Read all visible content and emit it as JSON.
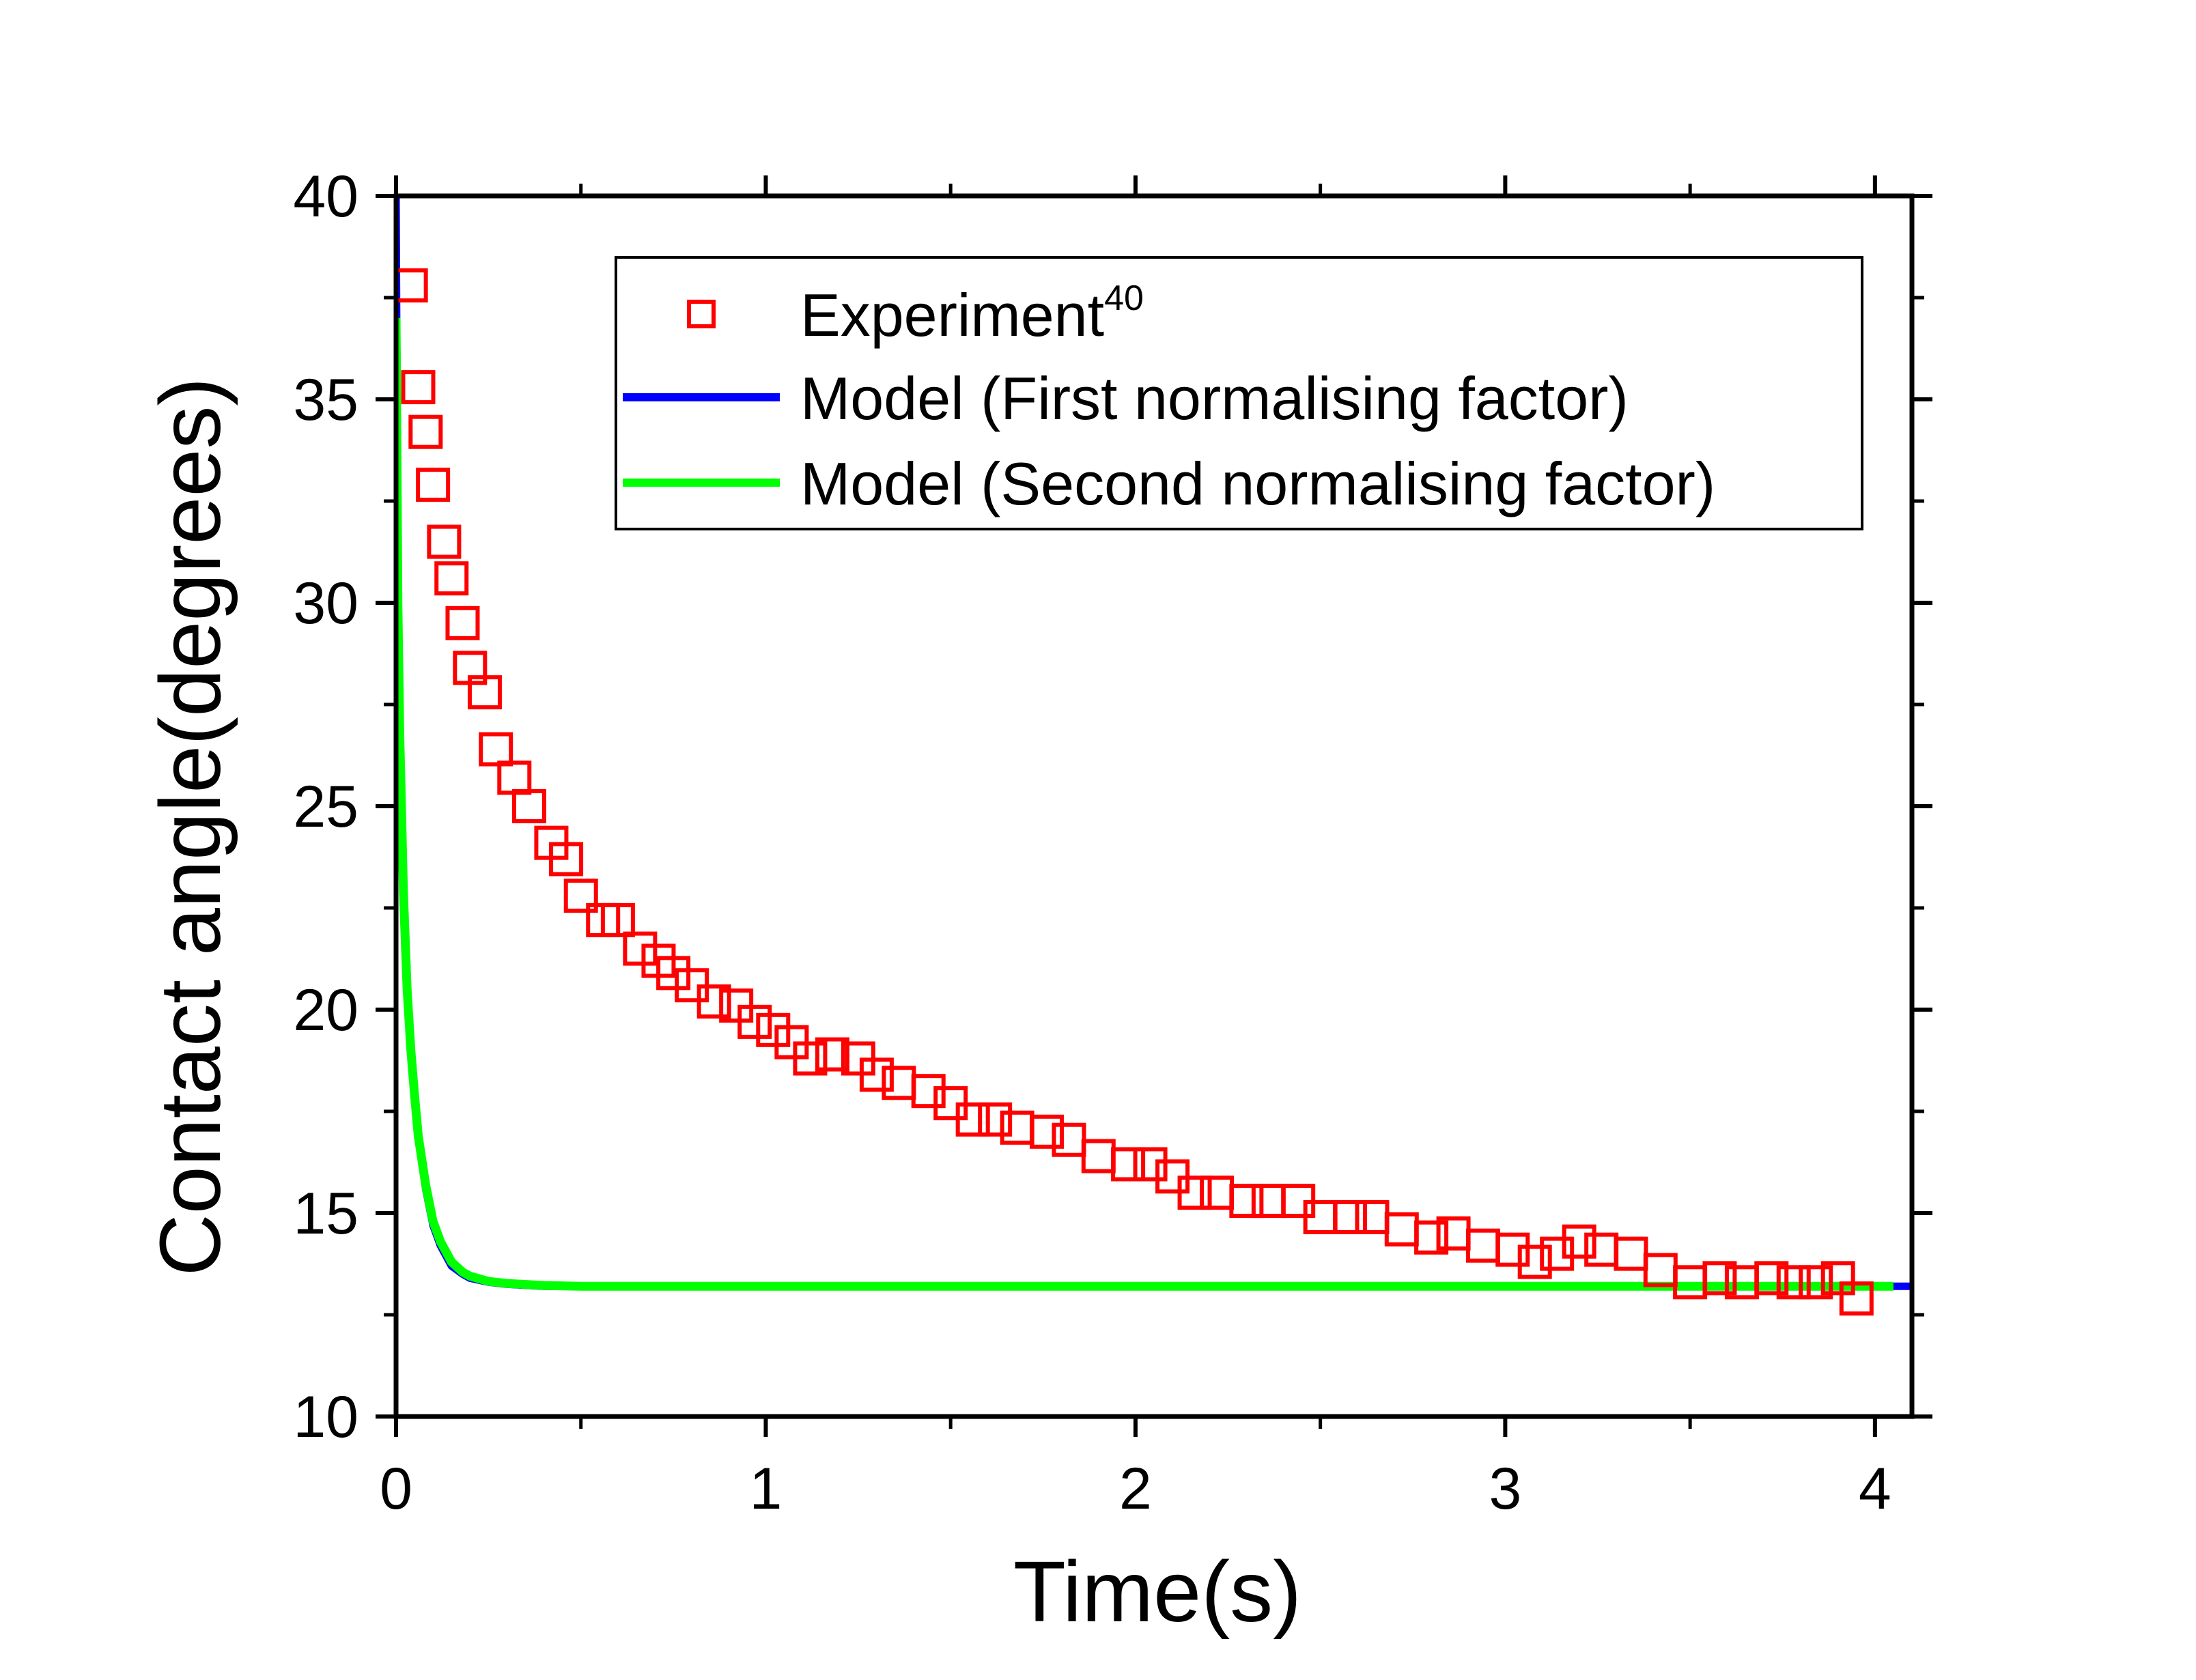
{
  "chart_data": {
    "type": "scatter+line",
    "title": "",
    "xlabel": "Time(s)",
    "ylabel": "Contact angle(degrees)",
    "xlim": [
      0,
      4.1
    ],
    "ylim": [
      10,
      40
    ],
    "x_ticks": [
      0,
      1,
      2,
      3,
      4
    ],
    "y_ticks": [
      10,
      15,
      20,
      25,
      30,
      35,
      40
    ],
    "x_tick_labels": [
      "0",
      "1",
      "2",
      "3",
      "4"
    ],
    "y_tick_labels": [
      "10",
      "15",
      "20",
      "25",
      "30",
      "35",
      "40"
    ],
    "grid": false,
    "legend_position": "top-right",
    "legend": [
      {
        "label": "Experiment",
        "superscript": "40",
        "marker": "open-square",
        "color": "#ff0000"
      },
      {
        "label": "Model (First normalising factor)",
        "marker": "line",
        "color": "#0000ff"
      },
      {
        "label": "Model (Second normalising factor)",
        "marker": "line",
        "color": "#00ff00"
      }
    ],
    "series": [
      {
        "name": "Experiment",
        "kind": "scatter",
        "color": "#ff0000",
        "x": [
          0.04,
          0.06,
          0.08,
          0.1,
          0.13,
          0.15,
          0.18,
          0.2,
          0.24,
          0.27,
          0.32,
          0.36,
          0.42,
          0.46,
          0.5,
          0.56,
          0.6,
          0.66,
          0.71,
          0.75,
          0.8,
          0.86,
          0.92,
          0.97,
          1.02,
          1.07,
          1.12,
          1.18,
          1.25,
          1.3,
          1.36,
          1.44,
          1.5,
          1.56,
          1.62,
          1.68,
          1.76,
          1.82,
          1.9,
          1.98,
          2.04,
          2.1,
          2.16,
          2.22,
          2.3,
          2.36,
          2.44,
          2.5,
          2.58,
          2.64,
          2.72,
          2.8,
          2.86,
          2.94,
          3.02,
          3.08,
          3.14,
          3.2,
          3.26,
          3.34,
          3.42,
          3.5,
          3.58,
          3.64,
          3.72,
          3.78,
          3.84,
          3.9,
          3.95
        ],
        "y": [
          37.8,
          35.3,
          34.2,
          32.9,
          31.5,
          30.6,
          29.5,
          28.4,
          27.8,
          26.4,
          25.7,
          25.0,
          24.1,
          23.7,
          22.8,
          22.2,
          22.2,
          21.5,
          21.2,
          20.9,
          20.6,
          20.2,
          20.1,
          19.7,
          19.5,
          19.2,
          18.8,
          18.9,
          18.8,
          18.4,
          18.2,
          18.0,
          17.7,
          17.3,
          17.3,
          17.1,
          17.0,
          16.8,
          16.4,
          16.2,
          16.2,
          15.9,
          15.5,
          15.5,
          15.3,
          15.3,
          15.3,
          14.9,
          14.9,
          14.9,
          14.6,
          14.4,
          14.5,
          14.2,
          14.1,
          13.8,
          14.0,
          14.3,
          14.1,
          14.0,
          13.6,
          13.3,
          13.4,
          13.3,
          13.4,
          13.3,
          13.3,
          13.4,
          12.9
        ]
      },
      {
        "name": "Model (First normalising factor)",
        "kind": "line",
        "color": "#0000ff",
        "equilibrium": 13.2,
        "x": [
          0,
          0.005,
          0.01,
          0.02,
          0.03,
          0.04,
          0.05,
          0.06,
          0.08,
          0.1,
          0.12,
          0.15,
          0.18,
          0.2,
          0.25,
          0.3,
          0.4,
          0.5,
          0.7,
          1.0,
          2.0,
          3.0,
          4.1
        ],
        "y": [
          40.0,
          30.5,
          27.0,
          23.0,
          20.6,
          19.0,
          17.9,
          16.9,
          15.6,
          14.7,
          14.2,
          13.7,
          13.5,
          13.4,
          13.3,
          13.25,
          13.2,
          13.2,
          13.2,
          13.2,
          13.2,
          13.2,
          13.2
        ]
      },
      {
        "name": "Model (Second normalising factor)",
        "kind": "line",
        "color": "#00ff00",
        "equilibrium": 13.2,
        "x": [
          0,
          0.005,
          0.01,
          0.02,
          0.03,
          0.04,
          0.05,
          0.06,
          0.08,
          0.1,
          0.12,
          0.15,
          0.18,
          0.2,
          0.25,
          0.3,
          0.4,
          0.5,
          0.7,
          1.0,
          2.0,
          3.0,
          4.05
        ],
        "y": [
          37.0,
          30.0,
          26.8,
          22.9,
          20.5,
          19.0,
          17.9,
          16.9,
          15.7,
          14.8,
          14.3,
          13.8,
          13.55,
          13.45,
          13.32,
          13.27,
          13.22,
          13.2,
          13.2,
          13.2,
          13.2,
          13.2,
          13.2
        ]
      }
    ]
  }
}
